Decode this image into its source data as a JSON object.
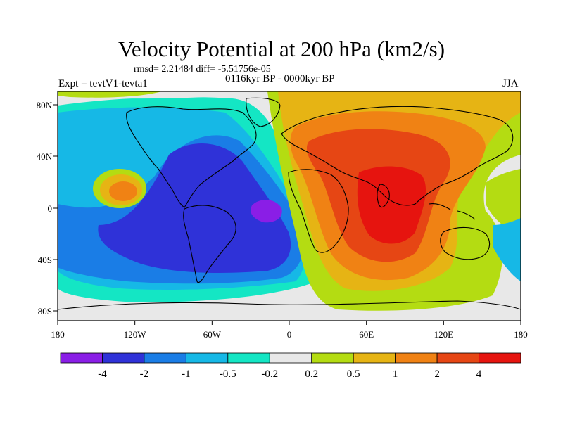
{
  "title": "Velocity Potential at 200 hPa (km2/s)",
  "stats": "rmsd= 2.21484 diff= -5.51756e-05",
  "experiment": "Expt = tevtV1-tevta1",
  "period": "0116kyr BP - 0000kyr BP",
  "season": "JJA",
  "map": {
    "lat_ticks": [
      "80N",
      "40N",
      "0",
      "40S",
      "80S"
    ],
    "lon_ticks": [
      "180",
      "120W",
      "60W",
      "0",
      "60E",
      "120E",
      "180"
    ]
  },
  "colorbar": {
    "labels": [
      "-4",
      "-2",
      "-1",
      "-0.5",
      "-0.2",
      "0.2",
      "0.5",
      "1",
      "2",
      "4"
    ],
    "colors": [
      "#8a1ee6",
      "#2f32d8",
      "#1a7de6",
      "#16b8e6",
      "#14e6c4",
      "#e8e8e8",
      "#b4dc12",
      "#e6b414",
      "#f08214",
      "#e64614",
      "#e6140f"
    ]
  },
  "legend_note": "Contour fill levels shown by colorbar"
}
